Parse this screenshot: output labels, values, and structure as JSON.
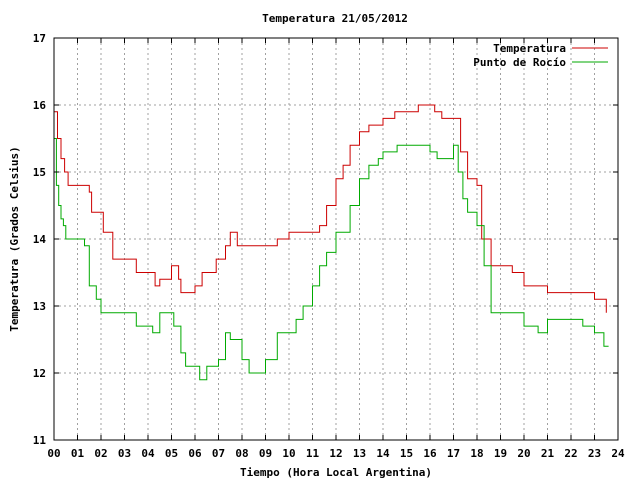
{
  "chart_data": {
    "type": "line",
    "title": "Temperatura 21/05/2012",
    "xlabel": "Tiempo (Hora Local Argentina)",
    "ylabel": "Temperatura (Grados Celsius)",
    "xlim": [
      0,
      24
    ],
    "ylim": [
      11,
      17
    ],
    "x_ticks": [
      "00",
      "01",
      "02",
      "03",
      "04",
      "05",
      "06",
      "07",
      "08",
      "09",
      "10",
      "11",
      "12",
      "13",
      "14",
      "15",
      "16",
      "17",
      "18",
      "19",
      "20",
      "21",
      "22",
      "23",
      "24"
    ],
    "y_ticks": [
      "11",
      "12",
      "13",
      "14",
      "15",
      "16",
      "17"
    ],
    "grid": true,
    "legend_position": "top-right",
    "series": [
      {
        "name": "Temperatura",
        "color": "#cc0000",
        "x": [
          0,
          0.15,
          0.3,
          0.45,
          0.6,
          1.0,
          1.5,
          1.6,
          2.1,
          2.5,
          3.2,
          3.5,
          4.2,
          4.3,
          4.5,
          5.0,
          5.1,
          5.3,
          5.4,
          6.0,
          6.3,
          6.9,
          7.3,
          7.5,
          7.8,
          8.5,
          9.0,
          9.5,
          10.0,
          10.5,
          11.0,
          11.3,
          11.6,
          12.0,
          12.3,
          12.6,
          13.0,
          13.4,
          13.8,
          14.0,
          14.5,
          15.0,
          15.5,
          16.0,
          16.2,
          16.5,
          17.0,
          17.3,
          17.6,
          18.0,
          18.2,
          18.6,
          19.0,
          19.5,
          20.0,
          20.5,
          21.0,
          21.5,
          22.0,
          22.5,
          23.0,
          23.4,
          23.5
        ],
        "y": [
          15.9,
          15.5,
          15.2,
          15.0,
          14.8,
          14.8,
          14.7,
          14.4,
          14.1,
          13.7,
          13.7,
          13.5,
          13.5,
          13.3,
          13.4,
          13.6,
          13.6,
          13.4,
          13.2,
          13.3,
          13.5,
          13.7,
          13.9,
          14.1,
          13.9,
          13.9,
          13.9,
          14.0,
          14.1,
          14.1,
          14.1,
          14.2,
          14.5,
          14.9,
          15.1,
          15.4,
          15.6,
          15.7,
          15.7,
          15.8,
          15.9,
          15.9,
          16.0,
          16.0,
          15.9,
          15.8,
          15.8,
          15.3,
          14.9,
          14.8,
          14.0,
          13.6,
          13.6,
          13.5,
          13.3,
          13.3,
          13.2,
          13.2,
          13.2,
          13.2,
          13.1,
          13.1,
          12.9
        ]
      },
      {
        "name": "Punto de Rocío",
        "color": "#00aa00",
        "x": [
          0,
          0.1,
          0.2,
          0.3,
          0.4,
          0.5,
          1.0,
          1.3,
          1.5,
          1.8,
          2.0,
          2.5,
          3.0,
          3.5,
          4.0,
          4.2,
          4.5,
          5.0,
          5.1,
          5.4,
          5.6,
          6.0,
          6.2,
          6.5,
          7.0,
          7.3,
          7.5,
          7.8,
          8.0,
          8.3,
          8.6,
          9.0,
          9.5,
          10.0,
          10.3,
          10.6,
          11.0,
          11.3,
          11.6,
          12.0,
          12.3,
          12.6,
          13.0,
          13.4,
          13.8,
          14.0,
          14.3,
          14.6,
          15.0,
          15.5,
          16.0,
          16.3,
          16.6,
          17.0,
          17.2,
          17.4,
          17.6,
          18.0,
          18.3,
          18.6,
          19.0,
          19.5,
          20.0,
          20.5,
          20.6,
          21.0,
          21.5,
          22.0,
          22.5,
          23.0,
          23.3,
          23.4,
          23.6
        ],
        "y": [
          15.5,
          14.8,
          14.5,
          14.3,
          14.2,
          14.0,
          14.0,
          13.9,
          13.3,
          13.1,
          12.9,
          12.9,
          12.9,
          12.7,
          12.7,
          12.6,
          12.9,
          12.9,
          12.7,
          12.3,
          12.1,
          12.1,
          11.9,
          12.1,
          12.2,
          12.6,
          12.5,
          12.5,
          12.2,
          12.0,
          12.0,
          12.2,
          12.6,
          12.6,
          12.8,
          13.0,
          13.3,
          13.6,
          13.8,
          14.1,
          14.1,
          14.5,
          14.9,
          15.1,
          15.2,
          15.3,
          15.3,
          15.4,
          15.4,
          15.4,
          15.3,
          15.2,
          15.2,
          15.4,
          15.0,
          14.6,
          14.4,
          14.2,
          13.6,
          12.9,
          12.9,
          12.9,
          12.7,
          12.7,
          12.6,
          12.8,
          12.8,
          12.8,
          12.7,
          12.6,
          12.6,
          12.4,
          12.4
        ]
      }
    ]
  }
}
